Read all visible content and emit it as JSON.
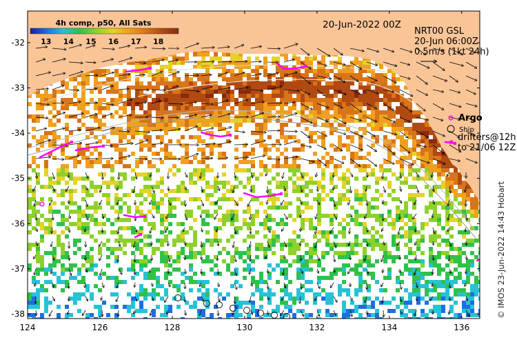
{
  "map": {
    "date": "20-Jun-2022 00Z",
    "product": {
      "line1": "NRT00 GSL",
      "line2": "20-Jun 06:00Z",
      "line3": "0.5m/s (1kt 24h)"
    },
    "colorbar": {
      "title": "4h comp, p50, All Sats",
      "ticks": [
        "13",
        "14",
        "15",
        "16",
        "17",
        "18"
      ],
      "range": [
        12.3,
        18.9
      ],
      "colors": [
        "#1a1aa8",
        "#1f6ee0",
        "#27c2d6",
        "#2fc24a",
        "#8fd12b",
        "#e6d22a",
        "#f0a01e",
        "#d8741a",
        "#b04a12",
        "#8a2a0c"
      ]
    },
    "legend": {
      "argo_label": "Argo",
      "ship_label": "Ship",
      "drifters_line1": "drifters@12h",
      "drifters_line2": "to 21/06 12Z"
    },
    "credit": "© IMOS 23-Jun-2022 14:43 Hobart",
    "x_ticks": [
      "124",
      "126",
      "128",
      "130",
      "132",
      "134",
      "136"
    ],
    "y_ticks": [
      "-32",
      "-33",
      "-34",
      "-35",
      "-36",
      "-37",
      "-38"
    ],
    "lon_range": [
      124,
      136.5
    ],
    "lat_range": [
      -38.1,
      -31.3
    ],
    "colors": {
      "land": "#f9c597",
      "argo": "#ff00ff",
      "drifter": "#ff00ff",
      "vector": "#000000"
    }
  }
}
